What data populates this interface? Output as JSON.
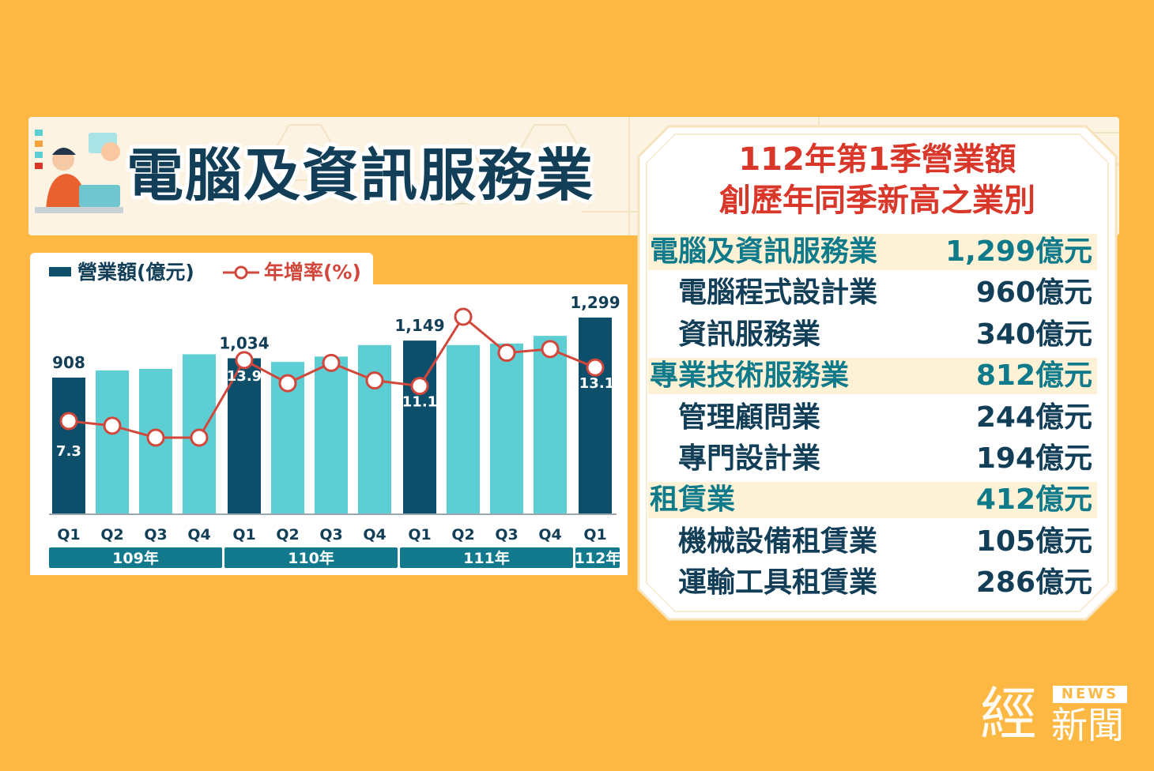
{
  "header": {
    "title": "電腦及資訊服務業"
  },
  "legend": {
    "bar_label": "營業額(億元)",
    "line_label": "年增率(%)"
  },
  "colors": {
    "bar_q1": "#0D4F6B",
    "bar_other": "#5DCFD4",
    "line": "#D2473B",
    "background": "#FDB843",
    "year_band": "#137A8E"
  },
  "chart_data": {
    "type": "bar",
    "categories": [
      "Q1",
      "Q2",
      "Q3",
      "Q4",
      "Q1",
      "Q2",
      "Q3",
      "Q4",
      "Q1",
      "Q2",
      "Q3",
      "Q4",
      "Q1"
    ],
    "years": [
      {
        "label": "109年",
        "span": 4
      },
      {
        "label": "110年",
        "span": 4
      },
      {
        "label": "111年",
        "span": 4
      },
      {
        "label": "112年",
        "span": 1
      }
    ],
    "series": [
      {
        "name": "營業額(億元)",
        "type": "bar",
        "values": [
          908,
          955,
          965,
          1060,
          1034,
          1010,
          1045,
          1120,
          1149,
          1120,
          1130,
          1180,
          1299
        ],
        "data_labels": [
          "908",
          null,
          null,
          null,
          "1,034",
          null,
          null,
          null,
          "1,149",
          null,
          null,
          null,
          "1,299"
        ]
      },
      {
        "name": "年增率(%)",
        "type": "line",
        "values": [
          7.3,
          6.8,
          5.5,
          5.5,
          13.9,
          11.4,
          13.6,
          11.7,
          11.1,
          18.6,
          14.7,
          15.1,
          13.1
        ],
        "data_labels": [
          "7.3",
          null,
          null,
          null,
          "13.9",
          null,
          null,
          null,
          "11.1",
          null,
          null,
          null,
          "13.1"
        ]
      }
    ]
  },
  "panel": {
    "title_line1": "112年第1季營業額",
    "title_line2": "創歷年同季新高之業別",
    "rows": [
      {
        "name": "電腦及資訊服務業",
        "value": "1,299億元",
        "level": "category"
      },
      {
        "name": "電腦程式設計業",
        "value": "960億元",
        "level": "sub"
      },
      {
        "name": "資訊服務業",
        "value": "340億元",
        "level": "sub"
      },
      {
        "name": "專業技術服務業",
        "value": "812億元",
        "level": "category"
      },
      {
        "name": "管理顧問業",
        "value": "244億元",
        "level": "sub"
      },
      {
        "name": "專門設計業",
        "value": "194億元",
        "level": "sub"
      },
      {
        "name": "租賃業",
        "value": "412億元",
        "level": "category"
      },
      {
        "name": "機械設備租賃業",
        "value": "105億元",
        "level": "sub"
      },
      {
        "name": "運輸工具租賃業",
        "value": "286億元",
        "level": "sub"
      }
    ]
  },
  "logo": {
    "big": "經",
    "news": "NEWS",
    "small": "新聞"
  }
}
